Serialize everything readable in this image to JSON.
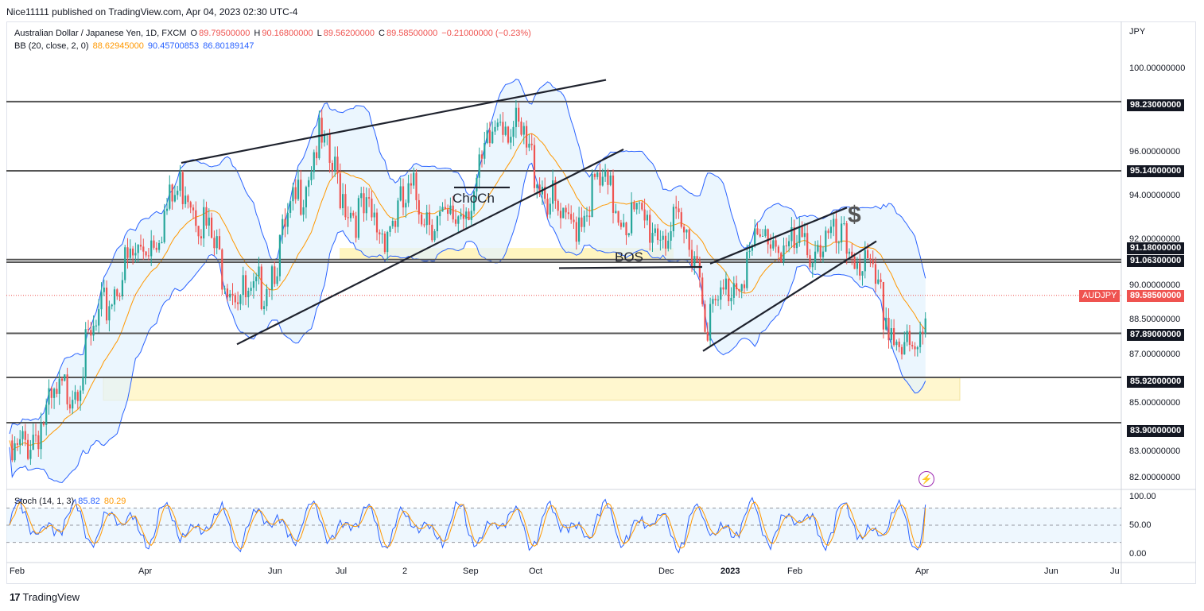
{
  "header": {
    "publisher_line": "Nice11111 published on TradingView.com, Apr 04, 2023 02:30 UTC-4"
  },
  "legend": {
    "symbol": "Australian Dollar / Japanese Yen, 1D, FXCM",
    "open_label": "O",
    "open": "89.79500000",
    "high_label": "H",
    "high": "90.16800000",
    "low_label": "L",
    "low": "89.56200000",
    "close_label": "C",
    "close": "89.58500000",
    "change": "−0.21000000 (−0.23%)",
    "bb_label": "BB (20, close, 2, 0)",
    "bb_basis": "88.62945000",
    "bb_upper": "90.45700853",
    "bb_lower": "86.80189147",
    "stoch_label": "Stoch (14, 1, 3)",
    "stoch_k": "85.82",
    "stoch_d": "80.29"
  },
  "currency": "JPY",
  "price_scale": [
    "100.00000000",
    "96.00000000",
    "94.00000000",
    "92.00000000",
    "90.00000000",
    "88.50000000",
    "87.00000000",
    "85.00000000",
    "83.00000000",
    "82.00000000"
  ],
  "stoch_scale": [
    "100.00",
    "50.00",
    "0.00"
  ],
  "time_axis": [
    "Feb",
    "Apr",
    "Jun",
    "Jul",
    "2",
    "Sep",
    "Oct",
    "Dec",
    "2023",
    "Feb",
    "Apr",
    "Jun",
    "Ju"
  ],
  "levels": [
    "98.23000000",
    "95.14000000",
    "91.18000000",
    "91.06300000",
    "87.89000000",
    "85.92000000",
    "83.90000000"
  ],
  "symbol_tag": {
    "name": "AUDJPY",
    "price": "89.58500000"
  },
  "annotations": [
    "ChoCh",
    "BOS",
    "$"
  ],
  "brand": "TradingView",
  "colors": {
    "up": "#26a69a",
    "down": "#ef5350",
    "bb_basis": "#ff9800",
    "bb_band": "#2962ff",
    "bb_fill": "#e3f2fd",
    "zone": "#fff3b0",
    "stoch_k": "#2962ff",
    "stoch_d": "#ff9800",
    "level_line": "#555555",
    "trend_line": "#1e222d"
  },
  "chart_data": [
    {
      "type": "candlestick",
      "title": "Australian Dollar / Japanese Yen, 1D, FXCM",
      "ylabel": "JPY",
      "ylim": [
        81.5,
        101.5
      ],
      "x_range": [
        "2022-02",
        "2023-07"
      ],
      "series": [
        {
          "name": "BB (20, close, 2, 0)",
          "values": [
            88.62945,
            90.45700853,
            86.80189147
          ]
        }
      ],
      "horizontal_levels": [
        98.23,
        95.14,
        91.18,
        91.063,
        87.89,
        85.92,
        83.9
      ],
      "approx_close_path": [
        [
          "2022-02",
          82.0
        ],
        [
          "2022-03",
          86.0
        ],
        [
          "2022-03-20",
          90.5
        ],
        [
          "2022-04-05",
          92.3
        ],
        [
          "2022-04-20",
          94.8
        ],
        [
          "2022-05-05",
          91.2
        ],
        [
          "2022-05-20",
          89.0
        ],
        [
          "2022-06-05",
          92.0
        ],
        [
          "2022-06-20",
          96.5
        ],
        [
          "2022-07-05",
          93.5
        ],
        [
          "2022-07-20",
          92.5
        ],
        [
          "2022-08-05",
          94.0
        ],
        [
          "2022-08-20",
          92.5
        ],
        [
          "2022-09-05",
          94.5
        ],
        [
          "2022-09-15",
          98.0
        ],
        [
          "2022-09-30",
          95.5
        ],
        [
          "2022-10-15",
          92.3
        ],
        [
          "2022-10-30",
          94.5
        ],
        [
          "2022-11-15",
          93.0
        ],
        [
          "2022-12-01",
          92.5
        ],
        [
          "2022-12-15",
          92.0
        ],
        [
          "2022-12-22",
          88.3
        ],
        [
          "2023-01-05",
          90.5
        ],
        [
          "2023-01-20",
          92.3
        ],
        [
          "2023-02-01",
          91.5
        ],
        [
          "2023-02-15",
          92.0
        ],
        [
          "2023-03-01",
          91.5
        ],
        [
          "2023-03-10",
          89.5
        ],
        [
          "2023-03-20",
          87.5
        ],
        [
          "2023-03-28",
          86.5
        ],
        [
          "2023-04-04",
          89.585
        ]
      ]
    },
    {
      "type": "line",
      "title": "Stoch (14, 1, 3)",
      "ylim": [
        0,
        100
      ],
      "series": [
        {
          "name": "%K",
          "values": [
            85.82
          ]
        },
        {
          "name": "%D",
          "values": [
            80.29
          ]
        }
      ],
      "reference_lines": [
        80,
        50,
        20
      ]
    }
  ]
}
